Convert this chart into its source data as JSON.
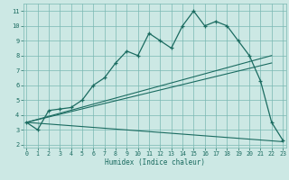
{
  "xlabel": "Humidex (Indice chaleur)",
  "bg_color": "#cce8e4",
  "grid_color": "#7ab8b2",
  "line_color": "#1a6b60",
  "curve_x": [
    0,
    1,
    2,
    3,
    4,
    5,
    6,
    7,
    8,
    9,
    10,
    11,
    12,
    13,
    14,
    15,
    16,
    17,
    18,
    19,
    20,
    21,
    22,
    23
  ],
  "curve_y": [
    3.5,
    3.0,
    4.3,
    4.4,
    4.5,
    5.0,
    6.0,
    6.5,
    7.5,
    8.3,
    8.0,
    9.5,
    9.0,
    8.5,
    10.0,
    11.0,
    10.0,
    10.3,
    10.0,
    9.0,
    8.0,
    6.3,
    3.5,
    2.3
  ],
  "line1_x": [
    0,
    22
  ],
  "line1_y": [
    3.5,
    8.0
  ],
  "line2_x": [
    0,
    22
  ],
  "line2_y": [
    3.5,
    7.5
  ],
  "line3_x": [
    0,
    23
  ],
  "line3_y": [
    3.5,
    2.2
  ],
  "ylim": [
    1.8,
    11.5
  ],
  "xlim": [
    -0.3,
    23.3
  ],
  "yticks": [
    2,
    3,
    4,
    5,
    6,
    7,
    8,
    9,
    10,
    11
  ],
  "xticks": [
    0,
    1,
    2,
    3,
    4,
    5,
    6,
    7,
    8,
    9,
    10,
    11,
    12,
    13,
    14,
    15,
    16,
    17,
    18,
    19,
    20,
    21,
    22,
    23
  ]
}
